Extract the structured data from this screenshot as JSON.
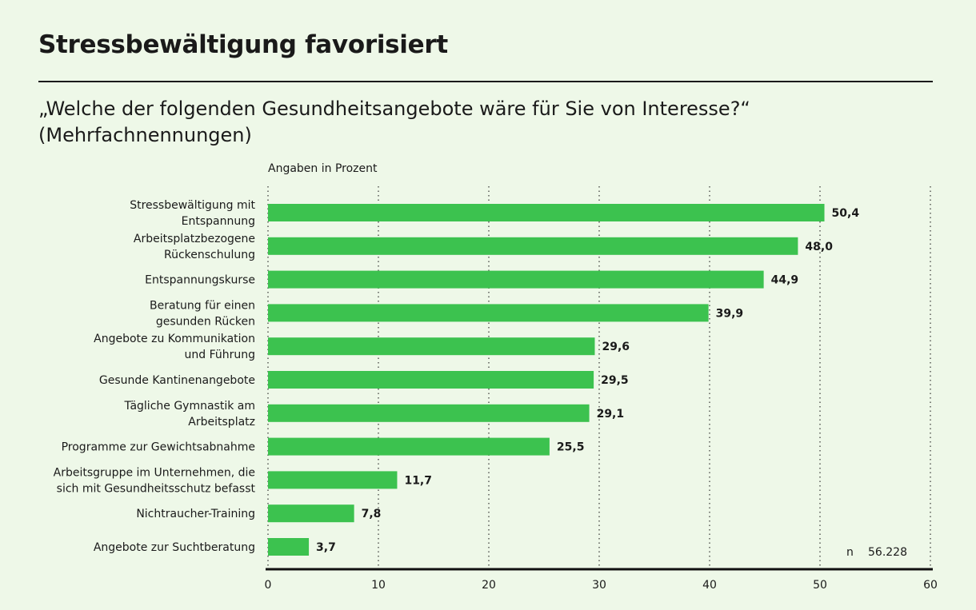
{
  "chart_data": {
    "type": "bar",
    "orientation": "horizontal",
    "title": "Stressbewältigung favorisiert",
    "subtitle_line1": "„Welche der folgenden Gesundheitsangebote wäre für Sie von Interesse?“",
    "subtitle_line2": "(Mehrfachnennungen)",
    "unit_label": "Angaben in Prozent",
    "categories": [
      [
        "Stressbewältigung mit",
        "Entspannung"
      ],
      [
        "Arbeitsplatzbezogene",
        "Rückenschulung"
      ],
      [
        "Entspannungskurse"
      ],
      [
        "Beratung für einen",
        "gesunden Rücken"
      ],
      [
        "Angebote zu Kommunikation",
        "und Führung"
      ],
      [
        "Gesunde Kantinenangebote"
      ],
      [
        "Tägliche Gymnastik am",
        "Arbeitsplatz"
      ],
      [
        "Programme zur Gewichtsabnahme"
      ],
      [
        "Arbeitsgruppe im Unternehmen, die",
        "sich mit Gesundheitsschutz befasst"
      ],
      [
        "Nichtraucher-Training"
      ],
      [
        "Angebote zur Suchtberatung"
      ]
    ],
    "values": [
      50.4,
      48.0,
      44.9,
      39.9,
      29.6,
      29.5,
      29.1,
      25.5,
      11.7,
      7.8,
      3.7
    ],
    "value_labels": [
      "50,4",
      "48,0",
      "44,9",
      "39,9",
      "29,6",
      "29,5",
      "29,1",
      "25,5",
      "11,7",
      "7,8",
      "3,7"
    ],
    "xlim": [
      0,
      60
    ],
    "ticks": [
      0,
      10,
      20,
      30,
      40,
      50,
      60
    ],
    "tick_labels": [
      "0",
      "10",
      "20",
      "30",
      "40",
      "50",
      "60"
    ],
    "n_label": "n",
    "n_value": "56.228",
    "grid": "vertical dotted",
    "colors": {
      "bar": "#3cc24f",
      "text": "#1a1a1a",
      "background": "#eef8e8"
    }
  }
}
